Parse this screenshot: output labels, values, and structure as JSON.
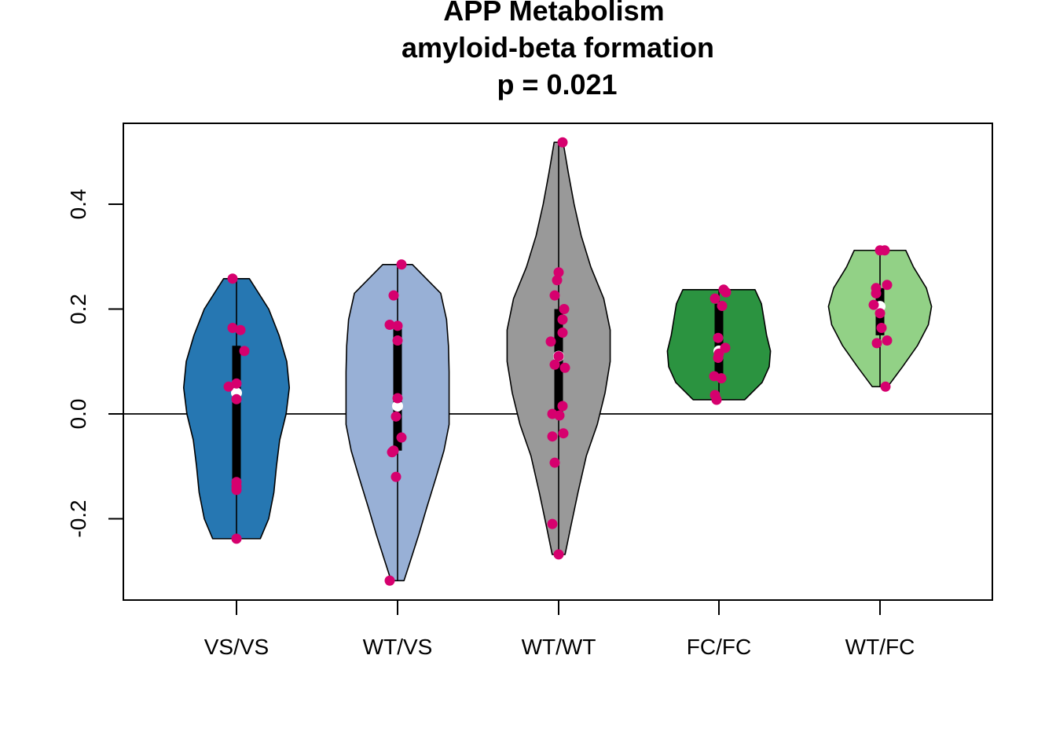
{
  "title_lines": [
    "APP Metabolism",
    "amyloid-beta formation",
    "p = 0.021"
  ],
  "chart_data": {
    "type": "violin",
    "title": "APP Metabolism\namyloid-beta formation\np = 0.021",
    "xlabel": "",
    "ylabel": "",
    "ylim": [
      -0.35,
      0.56
    ],
    "y_ticks": [
      -0.2,
      0.0,
      0.2,
      0.4
    ],
    "y_tick_labels": [
      "-0.2",
      "0.0",
      "0.2",
      "0.4"
    ],
    "reference_line_y": 0.0,
    "grid": false,
    "legend": "none",
    "point_color": "#d6006e",
    "median_marker_color": "#ffffff",
    "categories": [
      "VS/VS",
      "WT/VS",
      "WT/WT",
      "FC/FC",
      "WT/FC"
    ],
    "groups": [
      {
        "label": "VS/VS",
        "fill": "#2677b2",
        "min": -0.238,
        "q1": -0.13,
        "median": 0.04,
        "q3": 0.13,
        "max": 0.258,
        "density": [
          [
            -0.238,
            0.37
          ],
          [
            -0.2,
            0.5
          ],
          [
            -0.15,
            0.58
          ],
          [
            -0.1,
            0.62
          ],
          [
            -0.05,
            0.67
          ],
          [
            0.0,
            0.77
          ],
          [
            0.05,
            0.82
          ],
          [
            0.1,
            0.78
          ],
          [
            0.15,
            0.66
          ],
          [
            0.2,
            0.5
          ],
          [
            0.258,
            0.2
          ]
        ],
        "points": [
          [
            -0.05,
            0.258
          ],
          [
            -0.05,
            0.164
          ],
          [
            0.05,
            0.16
          ],
          [
            0.1,
            0.12
          ],
          [
            -0.1,
            0.052
          ],
          [
            0.0,
            0.058
          ],
          [
            0.0,
            0.028
          ],
          [
            0.0,
            -0.13
          ],
          [
            0.0,
            -0.145
          ],
          [
            0.0,
            -0.138
          ],
          [
            0.0,
            -0.238
          ]
        ]
      },
      {
        "label": "WT/VS",
        "fill": "#98b0d6",
        "min": -0.318,
        "q1": -0.07,
        "median": 0.015,
        "q3": 0.17,
        "max": 0.285,
        "density": [
          [
            -0.318,
            0.1
          ],
          [
            -0.28,
            0.2
          ],
          [
            -0.23,
            0.33
          ],
          [
            -0.18,
            0.45
          ],
          [
            -0.12,
            0.6
          ],
          [
            -0.07,
            0.72
          ],
          [
            -0.02,
            0.8
          ],
          [
            0.03,
            0.8
          ],
          [
            0.08,
            0.8
          ],
          [
            0.13,
            0.79
          ],
          [
            0.18,
            0.76
          ],
          [
            0.23,
            0.67
          ],
          [
            0.285,
            0.23
          ]
        ],
        "points": [
          [
            0.05,
            0.285
          ],
          [
            -0.05,
            0.226
          ],
          [
            -0.1,
            0.17
          ],
          [
            0.0,
            0.168
          ],
          [
            0.0,
            0.14
          ],
          [
            0.0,
            0.03
          ],
          [
            -0.02,
            -0.005
          ],
          [
            0.05,
            -0.045
          ],
          [
            -0.05,
            -0.07
          ],
          [
            -0.07,
            -0.073
          ],
          [
            -0.02,
            -0.12
          ],
          [
            -0.1,
            -0.318
          ]
        ]
      },
      {
        "label": "WT/WT",
        "fill": "#999999",
        "min": -0.268,
        "q1": 0.0,
        "median": 0.11,
        "q3": 0.2,
        "max": 0.518,
        "density": [
          [
            -0.268,
            0.1
          ],
          [
            -0.22,
            0.18
          ],
          [
            -0.15,
            0.3
          ],
          [
            -0.08,
            0.43
          ],
          [
            -0.02,
            0.6
          ],
          [
            0.04,
            0.72
          ],
          [
            0.1,
            0.8
          ],
          [
            0.16,
            0.8
          ],
          [
            0.22,
            0.7
          ],
          [
            0.28,
            0.5
          ],
          [
            0.34,
            0.35
          ],
          [
            0.4,
            0.24
          ],
          [
            0.46,
            0.15
          ],
          [
            0.518,
            0.07
          ]
        ],
        "points": [
          [
            0.05,
            0.518
          ],
          [
            0.0,
            0.27
          ],
          [
            -0.02,
            0.255
          ],
          [
            -0.05,
            0.226
          ],
          [
            0.07,
            0.2
          ],
          [
            0.05,
            0.18
          ],
          [
            0.05,
            0.155
          ],
          [
            -0.1,
            0.138
          ],
          [
            0.0,
            0.11
          ],
          [
            -0.05,
            0.094
          ],
          [
            0.08,
            0.088
          ],
          [
            0.05,
            0.015
          ],
          [
            -0.08,
            0.0
          ],
          [
            0.01,
            -0.003
          ],
          [
            0.06,
            -0.037
          ],
          [
            -0.08,
            -0.043
          ],
          [
            -0.05,
            -0.093
          ],
          [
            -0.08,
            -0.21
          ],
          [
            0.0,
            -0.268
          ]
        ]
      },
      {
        "label": "FC/FC",
        "fill": "#2b9340",
        "min": 0.027,
        "q1": 0.075,
        "median": 0.12,
        "q3": 0.21,
        "max": 0.237,
        "density": [
          [
            0.027,
            0.4
          ],
          [
            0.06,
            0.67
          ],
          [
            0.09,
            0.78
          ],
          [
            0.12,
            0.8
          ],
          [
            0.15,
            0.74
          ],
          [
            0.18,
            0.7
          ],
          [
            0.21,
            0.66
          ],
          [
            0.237,
            0.56
          ]
        ],
        "points": [
          [
            0.06,
            0.237
          ],
          [
            0.09,
            0.232
          ],
          [
            -0.05,
            0.22
          ],
          [
            0.04,
            0.206
          ],
          [
            -0.01,
            0.145
          ],
          [
            0.08,
            0.126
          ],
          [
            0.0,
            0.115
          ],
          [
            -0.01,
            0.107
          ],
          [
            -0.06,
            0.072
          ],
          [
            0.03,
            0.068
          ],
          [
            -0.05,
            0.036
          ],
          [
            -0.03,
            0.027
          ]
        ]
      },
      {
        "label": "WT/FC",
        "fill": "#92d186",
        "min": 0.052,
        "q1": 0.15,
        "median": 0.205,
        "q3": 0.24,
        "max": 0.312,
        "density": [
          [
            0.052,
            0.12
          ],
          [
            0.09,
            0.35
          ],
          [
            0.13,
            0.58
          ],
          [
            0.17,
            0.75
          ],
          [
            0.205,
            0.8
          ],
          [
            0.24,
            0.72
          ],
          [
            0.28,
            0.52
          ],
          [
            0.312,
            0.4
          ]
        ],
        "points": [
          [
            0.0,
            0.312
          ],
          [
            0.06,
            0.312
          ],
          [
            0.09,
            0.246
          ],
          [
            -0.05,
            0.24
          ],
          [
            -0.05,
            0.23
          ],
          [
            -0.08,
            0.208
          ],
          [
            0.0,
            0.192
          ],
          [
            0.02,
            0.164
          ],
          [
            -0.04,
            0.135
          ],
          [
            0.09,
            0.14
          ],
          [
            0.07,
            0.052
          ]
        ]
      }
    ]
  }
}
